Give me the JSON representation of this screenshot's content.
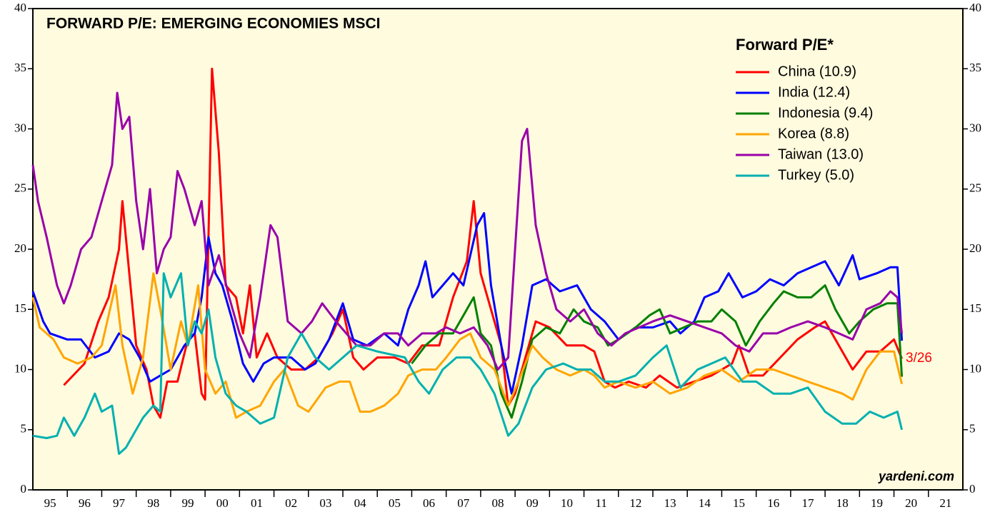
{
  "chart_data": {
    "type": "line",
    "title": "FORWARD P/E: EMERGING ECONOMIES MSCI",
    "legend_title": "Forward P/E*",
    "annotation": "3/26",
    "source": "yardeni.com",
    "xlim": [
      1995,
      2022
    ],
    "xticks": [
      {
        "value": 1995.5,
        "label": "95"
      },
      {
        "value": 1996.5,
        "label": "96"
      },
      {
        "value": 1997.5,
        "label": "97"
      },
      {
        "value": 1998.5,
        "label": "98"
      },
      {
        "value": 1999.5,
        "label": "99"
      },
      {
        "value": 2000.5,
        "label": "00"
      },
      {
        "value": 2001.5,
        "label": "01"
      },
      {
        "value": 2002.5,
        "label": "02"
      },
      {
        "value": 2003.5,
        "label": "03"
      },
      {
        "value": 2004.5,
        "label": "04"
      },
      {
        "value": 2005.5,
        "label": "05"
      },
      {
        "value": 2006.5,
        "label": "06"
      },
      {
        "value": 2007.5,
        "label": "07"
      },
      {
        "value": 2008.5,
        "label": "08"
      },
      {
        "value": 2009.5,
        "label": "09"
      },
      {
        "value": 2010.5,
        "label": "10"
      },
      {
        "value": 2011.5,
        "label": "11"
      },
      {
        "value": 2012.5,
        "label": "12"
      },
      {
        "value": 2013.5,
        "label": "13"
      },
      {
        "value": 2014.5,
        "label": "14"
      },
      {
        "value": 2015.5,
        "label": "15"
      },
      {
        "value": 2016.5,
        "label": "16"
      },
      {
        "value": 2017.5,
        "label": "17"
      },
      {
        "value": 2018.5,
        "label": "18"
      },
      {
        "value": 2019.5,
        "label": "19"
      },
      {
        "value": 2020.5,
        "label": "20"
      },
      {
        "value": 2021.5,
        "label": "21"
      }
    ],
    "ylim": [
      0,
      40
    ],
    "yticks": [
      0,
      5,
      10,
      15,
      20,
      25,
      30,
      35,
      40
    ],
    "y2lim": [
      0,
      40
    ],
    "y2ticks": [
      0,
      5,
      10,
      15,
      20,
      25,
      30,
      35,
      40
    ],
    "series": [
      {
        "name": "China (10.9)",
        "color": "#ff0000",
        "x": [
          1995.9,
          1996.5,
          1996.9,
          1997.2,
          1997.5,
          1997.6,
          1997.8,
          1998.0,
          1998.3,
          1998.5,
          1998.7,
          1998.9,
          1999.2,
          1999.5,
          1999.7,
          1999.9,
          2000.0,
          2000.2,
          2000.4,
          2000.6,
          2000.9,
          2001.1,
          2001.3,
          2001.5,
          2001.8,
          2002.1,
          2002.5,
          2002.9,
          2003.3,
          2003.7,
          2004.0,
          2004.3,
          2004.6,
          2005.0,
          2005.5,
          2005.9,
          2006.3,
          2006.8,
          2007.2,
          2007.6,
          2007.8,
          2008.0,
          2008.3,
          2008.6,
          2008.8,
          2009.0,
          2009.3,
          2009.6,
          2010.0,
          2010.5,
          2011.0,
          2011.3,
          2011.6,
          2011.9,
          2012.3,
          2012.8,
          2013.2,
          2013.7,
          2014.2,
          2014.7,
          2015.3,
          2015.5,
          2015.8,
          2016.2,
          2016.7,
          2017.2,
          2017.7,
          2018.0,
          2018.4,
          2018.8,
          2019.2,
          2019.6,
          2020.0,
          2020.23
        ],
        "values": [
          8.7,
          10.5,
          14,
          16,
          20,
          24,
          18,
          12,
          10,
          7,
          6,
          9,
          9,
          12.5,
          13,
          8,
          7.5,
          35,
          28,
          17,
          16,
          13,
          17,
          11,
          13,
          11,
          10,
          10,
          11,
          13,
          15,
          11,
          10,
          11,
          11,
          10.5,
          12,
          12,
          16,
          19,
          24,
          18,
          15,
          12,
          7,
          8,
          11,
          14,
          13.5,
          12,
          12,
          11.5,
          9,
          8.5,
          9,
          8.5,
          9.5,
          8.5,
          9,
          9.5,
          10.5,
          12,
          9.5,
          9.5,
          11,
          12.5,
          13.5,
          14,
          12,
          10,
          11.5,
          11.5,
          12.5,
          10.9
        ]
      },
      {
        "name": "India (12.4)",
        "color": "#0000ff",
        "x": [
          1995.0,
          1995.3,
          1995.5,
          1996.0,
          1996.4,
          1996.8,
          1997.2,
          1997.5,
          1997.8,
          1998.1,
          1998.4,
          1998.7,
          1999.0,
          1999.4,
          1999.7,
          1999.9,
          2000.1,
          2000.3,
          2000.5,
          2000.8,
          2001.1,
          2001.4,
          2001.7,
          2002.0,
          2002.5,
          2002.9,
          2003.2,
          2003.6,
          2004.0,
          2004.3,
          2004.7,
          2005.2,
          2005.6,
          2005.9,
          2006.2,
          2006.4,
          2006.6,
          2006.9,
          2007.2,
          2007.5,
          2007.9,
          2008.1,
          2008.3,
          2008.6,
          2008.9,
          2009.2,
          2009.5,
          2009.9,
          2010.3,
          2010.8,
          2011.2,
          2011.6,
          2012.0,
          2012.5,
          2013.0,
          2013.5,
          2013.8,
          2014.2,
          2014.5,
          2014.9,
          2015.2,
          2015.6,
          2016.0,
          2016.4,
          2016.8,
          2017.2,
          2017.6,
          2018.0,
          2018.4,
          2018.8,
          2019.0,
          2019.5,
          2019.9,
          2020.1,
          2020.23
        ],
        "values": [
          16.5,
          14,
          13,
          12.5,
          12.5,
          11,
          11.5,
          13,
          12.5,
          11,
          9,
          9.5,
          10,
          12,
          13,
          16,
          21,
          18,
          17,
          14,
          10.5,
          9,
          10.5,
          11,
          11,
          10,
          10.5,
          12.5,
          15.5,
          12.5,
          12,
          13,
          12,
          15,
          17,
          19,
          16,
          17,
          18,
          17,
          22,
          23,
          17,
          12,
          8,
          12,
          17,
          17.5,
          16.5,
          17,
          15,
          14,
          12.5,
          13.5,
          13.5,
          14,
          13,
          14,
          16,
          16.5,
          18,
          16,
          16.5,
          17.5,
          17,
          18,
          18.5,
          19,
          17,
          19.5,
          17.5,
          18,
          18.5,
          18.5,
          12.4
        ]
      },
      {
        "name": "Indonesia (9.4)",
        "color": "#008000",
        "x": [
          2006.0,
          2006.4,
          2006.8,
          2007.2,
          2007.5,
          2007.8,
          2008.0,
          2008.3,
          2008.6,
          2008.9,
          2009.2,
          2009.5,
          2009.9,
          2010.3,
          2010.7,
          2011.0,
          2011.4,
          2011.7,
          2012.0,
          2012.5,
          2012.9,
          2013.2,
          2013.5,
          2013.9,
          2014.3,
          2014.7,
          2015.0,
          2015.4,
          2015.7,
          2016.1,
          2016.5,
          2016.8,
          2017.2,
          2017.6,
          2018.0,
          2018.3,
          2018.7,
          2019.0,
          2019.4,
          2019.8,
          2020.1,
          2020.23
        ],
        "values": [
          10.5,
          12,
          13,
          13,
          14.5,
          16,
          13,
          12,
          8,
          6,
          9,
          12.5,
          13.5,
          13,
          15,
          14,
          13.5,
          12,
          12.5,
          13.5,
          14.5,
          15,
          13,
          13.5,
          14,
          14,
          15,
          14,
          12,
          14,
          15.5,
          16.5,
          16,
          16,
          17,
          15,
          13,
          14,
          15,
          15.5,
          15.5,
          9.4
        ]
      },
      {
        "name": "Korea (8.8)",
        "color": "#ffa500",
        "x": [
          1995.0,
          1995.2,
          1995.6,
          1995.9,
          1996.3,
          1996.7,
          1997.0,
          1997.4,
          1997.6,
          1997.9,
          1998.2,
          1998.5,
          1998.7,
          1999.0,
          1999.3,
          1999.5,
          1999.8,
          2000.0,
          2000.3,
          2000.6,
          2000.9,
          2001.2,
          2001.6,
          2002.0,
          2002.3,
          2002.7,
          2003.0,
          2003.5,
          2003.9,
          2004.2,
          2004.5,
          2004.8,
          2005.2,
          2005.6,
          2005.9,
          2006.3,
          2006.7,
          2007.0,
          2007.4,
          2007.7,
          2008.0,
          2008.4,
          2008.8,
          2009.1,
          2009.5,
          2009.8,
          2010.2,
          2010.6,
          2011.0,
          2011.3,
          2011.6,
          2012.0,
          2012.5,
          2013.0,
          2013.5,
          2014.0,
          2014.5,
          2015.0,
          2015.5,
          2016.0,
          2016.5,
          2017.0,
          2017.5,
          2018.0,
          2018.5,
          2018.8,
          2019.2,
          2019.6,
          2020.0,
          2020.23
        ],
        "values": [
          16,
          13.5,
          12.5,
          11,
          10.5,
          11,
          12,
          17,
          12,
          8,
          11,
          18,
          15,
          10,
          14,
          12,
          17,
          10,
          8,
          9,
          6,
          6.5,
          7,
          9,
          10,
          7,
          6.5,
          8.5,
          9,
          9,
          6.5,
          6.5,
          7,
          8,
          9.5,
          10,
          10,
          11,
          12.5,
          13,
          11,
          10,
          7,
          9,
          12,
          11,
          10,
          9.5,
          10,
          9.5,
          8.5,
          9,
          8.5,
          9,
          8,
          8.5,
          9.5,
          10,
          9,
          10,
          10,
          9.5,
          9,
          8.5,
          8,
          7.5,
          10,
          11.5,
          11.5,
          8.8
        ]
      },
      {
        "name": "Taiwan (13.0)",
        "color": "#9900aa",
        "x": [
          1995.0,
          1995.15,
          1995.4,
          1995.7,
          1995.9,
          1996.1,
          1996.4,
          1996.7,
          1997.0,
          1997.3,
          1997.45,
          1997.6,
          1997.8,
          1998.0,
          1998.2,
          1998.4,
          1998.6,
          1998.8,
          1999.0,
          1999.2,
          1999.4,
          1999.7,
          1999.9,
          2000.1,
          2000.4,
          2000.7,
          2001.0,
          2001.3,
          2001.6,
          2001.9,
          2002.1,
          2002.4,
          2002.8,
          2003.1,
          2003.4,
          2003.8,
          2004.1,
          2004.4,
          2004.8,
          2005.2,
          2005.6,
          2005.9,
          2006.3,
          2006.7,
          2007.0,
          2007.4,
          2007.8,
          2008.2,
          2008.5,
          2008.8,
          2009.0,
          2009.2,
          2009.35,
          2009.6,
          2009.9,
          2010.2,
          2010.6,
          2011.0,
          2011.4,
          2011.8,
          2012.2,
          2012.6,
          2013.0,
          2013.5,
          2014.0,
          2014.5,
          2015.0,
          2015.4,
          2015.8,
          2016.2,
          2016.6,
          2017.0,
          2017.5,
          2018.0,
          2018.4,
          2018.8,
          2019.2,
          2019.6,
          2019.9,
          2020.1,
          2020.23
        ],
        "values": [
          27,
          24,
          21,
          17,
          15.5,
          17,
          20,
          21,
          24,
          27,
          33,
          30,
          31,
          24,
          20,
          25,
          18,
          20,
          21,
          26.5,
          25,
          22,
          24,
          17,
          19.5,
          16,
          13,
          11,
          16,
          22,
          21,
          14,
          13,
          14,
          15.5,
          14,
          13,
          12,
          12,
          13,
          13,
          12,
          13,
          13,
          13.5,
          13,
          13.5,
          12,
          10,
          11,
          20,
          29,
          30,
          22,
          18,
          15,
          14,
          15,
          13,
          12,
          13,
          13.5,
          14,
          14.5,
          14,
          13.5,
          13,
          12,
          11.5,
          13,
          13,
          13.5,
          14,
          13.5,
          13,
          12.5,
          15,
          15.5,
          16.5,
          16,
          13.0
        ]
      },
      {
        "name": "Turkey (5.0)",
        "color": "#00b0b0",
        "x": [
          1995.0,
          1995.4,
          1995.7,
          1995.9,
          1996.2,
          1996.5,
          1996.8,
          1997.0,
          1997.3,
          1997.5,
          1997.7,
          1997.9,
          1998.2,
          1998.5,
          1998.7,
          1998.8,
          1999.0,
          1999.3,
          1999.5,
          1999.7,
          1999.9,
          2000.1,
          2000.3,
          2000.6,
          2000.9,
          2001.2,
          2001.6,
          2002.0,
          2002.4,
          2002.8,
          2003.2,
          2003.6,
          2004.0,
          2004.4,
          2005.0,
          2005.8,
          2006.2,
          2006.5,
          2006.9,
          2007.3,
          2007.7,
          2008.0,
          2008.4,
          2008.8,
          2009.1,
          2009.5,
          2009.9,
          2010.4,
          2010.8,
          2011.2,
          2011.6,
          2012.0,
          2012.5,
          2013.0,
          2013.4,
          2013.8,
          2014.3,
          2014.7,
          2015.1,
          2015.6,
          2016.0,
          2016.5,
          2017.0,
          2017.5,
          2018.0,
          2018.5,
          2018.9,
          2019.3,
          2019.7,
          2020.1,
          2020.23
        ],
        "values": [
          4.5,
          4.3,
          4.5,
          6,
          4.5,
          6,
          8,
          6.5,
          7,
          3,
          3.5,
          4.5,
          6,
          7,
          6.5,
          18,
          16,
          18,
          12,
          14,
          13,
          15,
          11,
          8,
          7,
          6.5,
          5.5,
          6,
          11,
          13,
          11,
          10,
          11,
          12,
          11.5,
          11,
          9,
          8,
          10,
          11,
          11,
          10,
          8,
          4.5,
          5.5,
          8.5,
          10,
          10.5,
          10,
          10,
          9,
          9,
          9.5,
          11,
          12,
          8.5,
          10,
          10.5,
          11,
          9,
          9,
          8,
          8,
          8.5,
          6.5,
          5.5,
          5.5,
          6.5,
          6,
          6.5,
          5.0
        ]
      }
    ]
  }
}
